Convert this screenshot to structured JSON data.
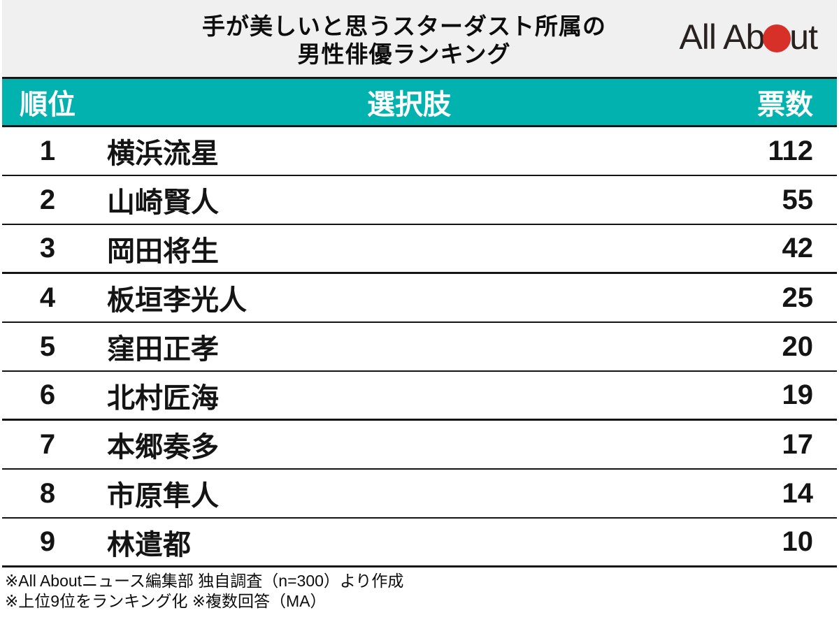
{
  "header": {
    "title_line1": "手が美しいと思うスターダスト所属の",
    "title_line2": "男性俳優ランキング",
    "logo_part1": "All Ab",
    "logo_part2": "ut",
    "logo_dot_icon": "red-circle"
  },
  "table": {
    "columns": {
      "rank": "順位",
      "choice": "選択肢",
      "votes": "票数"
    },
    "rows": [
      {
        "rank": "1",
        "name": "横浜流星",
        "votes": "112"
      },
      {
        "rank": "2",
        "name": "山崎賢人",
        "votes": "55"
      },
      {
        "rank": "3",
        "name": "岡田将生",
        "votes": "42"
      },
      {
        "rank": "4",
        "name": "板垣李光人",
        "votes": "25"
      },
      {
        "rank": "5",
        "name": "窪田正孝",
        "votes": "20"
      },
      {
        "rank": "6",
        "name": "北村匠海",
        "votes": "19"
      },
      {
        "rank": "7",
        "name": "本郷奏多",
        "votes": "17"
      },
      {
        "rank": "8",
        "name": "市原隼人",
        "votes": "14"
      },
      {
        "rank": "9",
        "name": "林遣都",
        "votes": "10"
      }
    ]
  },
  "footer": {
    "note1": "※All Aboutニュース編集部 独自調査（n=300）より作成",
    "note2": "※上位9位をランキング化 ※複数回答（MA）"
  },
  "colors": {
    "accent_teal": "#01b2ae",
    "header_gray": "#f1f0f1",
    "logo_red": "#d63028",
    "line_black": "#141414"
  },
  "chart_data": {
    "type": "table",
    "title": "手が美しいと思うスターダスト所属の男性俳優ランキング",
    "columns": [
      "順位",
      "選択肢",
      "票数"
    ],
    "categories": [
      "横浜流星",
      "山崎賢人",
      "岡田将生",
      "板垣李光人",
      "窪田正孝",
      "北村匠海",
      "本郷奏多",
      "市原隼人",
      "林遣都"
    ],
    "values": [
      112,
      55,
      42,
      25,
      20,
      19,
      17,
      14,
      10
    ],
    "notes": [
      "※All Aboutニュース編集部 独自調査（n=300）より作成",
      "※上位9位をランキング化 ※複数回答（MA）"
    ]
  }
}
